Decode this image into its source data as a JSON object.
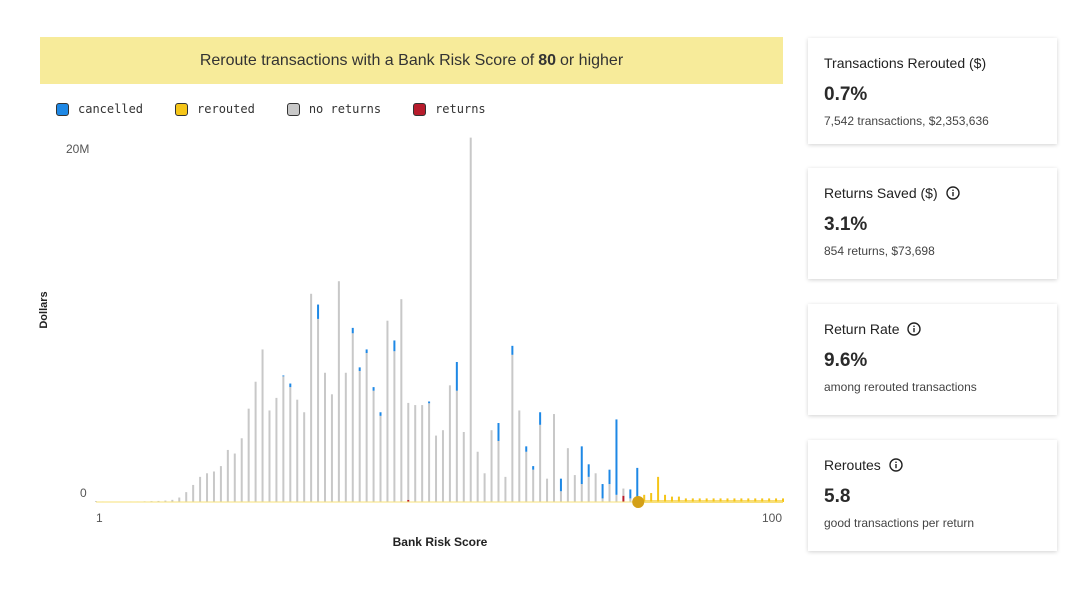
{
  "banner": {
    "prefix": "Reroute transactions with a Bank Risk Score of",
    "threshold": "80",
    "suffix": "or higher"
  },
  "legend": [
    {
      "label": "cancelled",
      "color": "#1e88e5"
    },
    {
      "label": "rerouted",
      "color": "#f5c518"
    },
    {
      "label": "no returns",
      "color": "#c8c8c8"
    },
    {
      "label": "returns",
      "color": "#b71c2c"
    }
  ],
  "cards": [
    {
      "title": "Transactions Rerouted ($)",
      "has_info": false,
      "value": "0.7%",
      "sub": "7,542 transactions, $2,353,636"
    },
    {
      "title": "Returns Saved ($)",
      "has_info": true,
      "value": "3.1%",
      "sub": "854 returns, $73,698"
    },
    {
      "title": "Return Rate",
      "has_info": true,
      "value": "9.6%",
      "sub": "among rerouted transactions"
    },
    {
      "title": "Reroutes",
      "has_info": true,
      "value": "5.8",
      "sub": "good transactions per return"
    }
  ],
  "chart_data": {
    "type": "bar",
    "stacked": true,
    "xlabel": "Bank Risk Score",
    "ylabel": "Dollars",
    "x_tick_labels": [
      "1",
      "100"
    ],
    "y_tick_labels": [
      "0",
      "20M"
    ],
    "xlim": [
      1,
      100
    ],
    "ylim": [
      0,
      20000000
    ],
    "threshold": 80,
    "colors": {
      "cancelled": "#1e88e5",
      "rerouted": "#f5c518",
      "no_returns": "#c8c8c8",
      "returns": "#b71c2c",
      "marker": "#d4a017"
    },
    "bars": [
      {
        "x": 1,
        "no_returns": 50000,
        "cancelled": 0,
        "returns": 0
      },
      {
        "x": 2,
        "no_returns": 30000,
        "cancelled": 0,
        "returns": 0
      },
      {
        "x": 3,
        "no_returns": 20000,
        "cancelled": 0,
        "returns": 0
      },
      {
        "x": 4,
        "no_returns": 20000,
        "cancelled": 0,
        "returns": 0
      },
      {
        "x": 5,
        "no_returns": 20000,
        "cancelled": 0,
        "returns": 0
      },
      {
        "x": 6,
        "no_returns": 30000,
        "cancelled": 0,
        "returns": 0
      },
      {
        "x": 7,
        "no_returns": 30000,
        "cancelled": 0,
        "returns": 0
      },
      {
        "x": 8,
        "no_returns": 40000,
        "cancelled": 0,
        "returns": 0
      },
      {
        "x": 9,
        "no_returns": 50000,
        "cancelled": 0,
        "returns": 0
      },
      {
        "x": 10,
        "no_returns": 60000,
        "cancelled": 0,
        "returns": 0
      },
      {
        "x": 11,
        "no_returns": 80000,
        "cancelled": 0,
        "returns": 0
      },
      {
        "x": 12,
        "no_returns": 120000,
        "cancelled": 0,
        "returns": 0
      },
      {
        "x": 13,
        "no_returns": 250000,
        "cancelled": 0,
        "returns": 0
      },
      {
        "x": 14,
        "no_returns": 550000,
        "cancelled": 0,
        "returns": 0
      },
      {
        "x": 15,
        "no_returns": 950000,
        "cancelled": 0,
        "returns": 0
      },
      {
        "x": 16,
        "no_returns": 1400000,
        "cancelled": 0,
        "returns": 0
      },
      {
        "x": 17,
        "no_returns": 1600000,
        "cancelled": 0,
        "returns": 0
      },
      {
        "x": 18,
        "no_returns": 1700000,
        "cancelled": 0,
        "returns": 0
      },
      {
        "x": 19,
        "no_returns": 2000000,
        "cancelled": 0,
        "returns": 0
      },
      {
        "x": 20,
        "no_returns": 2900000,
        "cancelled": 0,
        "returns": 0
      },
      {
        "x": 21,
        "no_returns": 2700000,
        "cancelled": 0,
        "returns": 0
      },
      {
        "x": 22,
        "no_returns": 3550000,
        "cancelled": 0,
        "returns": 0
      },
      {
        "x": 23,
        "no_returns": 5200000,
        "cancelled": 0,
        "returns": 0
      },
      {
        "x": 24,
        "no_returns": 6700000,
        "cancelled": 0,
        "returns": 0
      },
      {
        "x": 25,
        "no_returns": 8500000,
        "cancelled": 0,
        "returns": 0
      },
      {
        "x": 26,
        "no_returns": 5100000,
        "cancelled": 0,
        "returns": 0
      },
      {
        "x": 27,
        "no_returns": 5800000,
        "cancelled": 0,
        "returns": 0
      },
      {
        "x": 28,
        "no_returns": 7000000,
        "cancelled": 50000,
        "returns": 0
      },
      {
        "x": 29,
        "no_returns": 6400000,
        "cancelled": 200000,
        "returns": 0
      },
      {
        "x": 30,
        "no_returns": 5700000,
        "cancelled": 0,
        "returns": 0
      },
      {
        "x": 31,
        "no_returns": 5000000,
        "cancelled": 0,
        "returns": 0
      },
      {
        "x": 32,
        "no_returns": 11600000,
        "cancelled": 0,
        "returns": 0
      },
      {
        "x": 33,
        "no_returns": 10200000,
        "cancelled": 800000,
        "returns": 0
      },
      {
        "x": 34,
        "no_returns": 7200000,
        "cancelled": 0,
        "returns": 0
      },
      {
        "x": 35,
        "no_returns": 6000000,
        "cancelled": 0,
        "returns": 0
      },
      {
        "x": 36,
        "no_returns": 12300000,
        "cancelled": 0,
        "returns": 0
      },
      {
        "x": 37,
        "no_returns": 7200000,
        "cancelled": 0,
        "returns": 0
      },
      {
        "x": 38,
        "no_returns": 9400000,
        "cancelled": 300000,
        "returns": 0
      },
      {
        "x": 39,
        "no_returns": 7300000,
        "cancelled": 200000,
        "returns": 0
      },
      {
        "x": 40,
        "no_returns": 8300000,
        "cancelled": 200000,
        "returns": 0
      },
      {
        "x": 41,
        "no_returns": 6200000,
        "cancelled": 200000,
        "returns": 0
      },
      {
        "x": 42,
        "no_returns": 4800000,
        "cancelled": 200000,
        "returns": 0
      },
      {
        "x": 43,
        "no_returns": 10100000,
        "cancelled": 0,
        "returns": 0
      },
      {
        "x": 44,
        "no_returns": 8400000,
        "cancelled": 600000,
        "returns": 0
      },
      {
        "x": 45,
        "no_returns": 11300000,
        "cancelled": 0,
        "returns": 0
      },
      {
        "x": 46,
        "no_returns": 5400000,
        "cancelled": 0,
        "returns": 120000
      },
      {
        "x": 47,
        "no_returns": 5400000,
        "cancelled": 0,
        "returns": 0
      },
      {
        "x": 48,
        "no_returns": 5400000,
        "cancelled": 0,
        "returns": 0
      },
      {
        "x": 49,
        "no_returns": 5500000,
        "cancelled": 100000,
        "returns": 0
      },
      {
        "x": 50,
        "no_returns": 3700000,
        "cancelled": 0,
        "returns": 0
      },
      {
        "x": 51,
        "no_returns": 4000000,
        "cancelled": 0,
        "returns": 0
      },
      {
        "x": 52,
        "no_returns": 6500000,
        "cancelled": 0,
        "returns": 0
      },
      {
        "x": 53,
        "no_returns": 6200000,
        "cancelled": 1600000,
        "returns": 0
      },
      {
        "x": 54,
        "no_returns": 3900000,
        "cancelled": 0,
        "returns": 0
      },
      {
        "x": 55,
        "no_returns": 20300000,
        "cancelled": 0,
        "returns": 0
      },
      {
        "x": 56,
        "no_returns": 2800000,
        "cancelled": 0,
        "returns": 0
      },
      {
        "x": 57,
        "no_returns": 1600000,
        "cancelled": 0,
        "returns": 0
      },
      {
        "x": 58,
        "no_returns": 4000000,
        "cancelled": 0,
        "returns": 0
      },
      {
        "x": 59,
        "no_returns": 3400000,
        "cancelled": 1000000,
        "returns": 0
      },
      {
        "x": 60,
        "no_returns": 1400000,
        "cancelled": 0,
        "returns": 0
      },
      {
        "x": 61,
        "no_returns": 8200000,
        "cancelled": 500000,
        "returns": 0
      },
      {
        "x": 62,
        "no_returns": 5100000,
        "cancelled": 0,
        "returns": 0
      },
      {
        "x": 63,
        "no_returns": 2800000,
        "cancelled": 300000,
        "returns": 0
      },
      {
        "x": 64,
        "no_returns": 1800000,
        "cancelled": 200000,
        "returns": 0
      },
      {
        "x": 65,
        "no_returns": 4300000,
        "cancelled": 700000,
        "returns": 0
      },
      {
        "x": 66,
        "no_returns": 1300000,
        "cancelled": 0,
        "returns": 0
      },
      {
        "x": 67,
        "no_returns": 4900000,
        "cancelled": 0,
        "returns": 0
      },
      {
        "x": 68,
        "no_returns": 600000,
        "cancelled": 700000,
        "returns": 0
      },
      {
        "x": 69,
        "no_returns": 3000000,
        "cancelled": 0,
        "returns": 0
      },
      {
        "x": 70,
        "no_returns": 1500000,
        "cancelled": 0,
        "returns": 0
      },
      {
        "x": 71,
        "no_returns": 1000000,
        "cancelled": 2100000,
        "returns": 0
      },
      {
        "x": 72,
        "no_returns": 1400000,
        "cancelled": 700000,
        "returns": 0
      },
      {
        "x": 73,
        "no_returns": 1600000,
        "cancelled": 0,
        "returns": 0
      },
      {
        "x": 74,
        "no_returns": 200000,
        "cancelled": 800000,
        "returns": 0
      },
      {
        "x": 75,
        "no_returns": 1000000,
        "cancelled": 800000,
        "returns": 0
      },
      {
        "x": 76,
        "no_returns": 400000,
        "cancelled": 4200000,
        "returns": 0
      },
      {
        "x": 77,
        "no_returns": 400000,
        "cancelled": 0,
        "returns": 350000
      },
      {
        "x": 78,
        "no_returns": 200000,
        "cancelled": 500000,
        "returns": 0
      },
      {
        "x": 79,
        "no_returns": 200000,
        "cancelled": 1700000,
        "returns": 0
      }
    ],
    "rerouted": [
      {
        "x": 80,
        "value": 400000
      },
      {
        "x": 81,
        "value": 500000
      },
      {
        "x": 82,
        "value": 1400000
      },
      {
        "x": 83,
        "value": 400000
      },
      {
        "x": 84,
        "value": 300000
      },
      {
        "x": 85,
        "value": 300000
      },
      {
        "x": 86,
        "value": 200000
      },
      {
        "x": 87,
        "value": 200000
      },
      {
        "x": 88,
        "value": 200000
      },
      {
        "x": 89,
        "value": 200000
      },
      {
        "x": 90,
        "value": 200000
      },
      {
        "x": 91,
        "value": 200000
      },
      {
        "x": 92,
        "value": 200000
      },
      {
        "x": 93,
        "value": 200000
      },
      {
        "x": 94,
        "value": 200000
      },
      {
        "x": 95,
        "value": 200000
      },
      {
        "x": 96,
        "value": 200000
      },
      {
        "x": 97,
        "value": 200000
      },
      {
        "x": 98,
        "value": 200000
      },
      {
        "x": 99,
        "value": 200000
      },
      {
        "x": 100,
        "value": 200000
      }
    ]
  }
}
